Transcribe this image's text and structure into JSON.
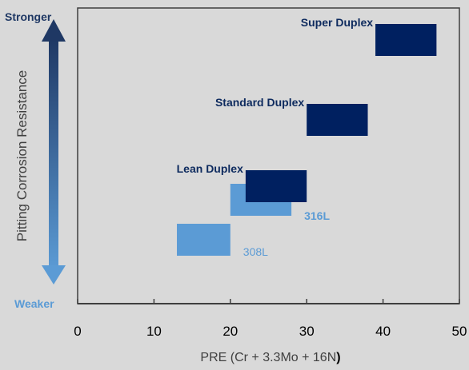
{
  "chart_data": {
    "type": "range-bar",
    "xlabel_main": "PRE (Cr + 3.3Mo + 16N",
    "xlabel_paren": ")",
    "ylabel": "Pitting Corrosion Resistance",
    "y_top_label": "Stronger",
    "y_bottom_label": "Weaker",
    "xlim": [
      0,
      50
    ],
    "xticks": [
      "0",
      "10",
      "20",
      "30",
      "40",
      "50"
    ],
    "grid": false,
    "series": [
      {
        "name": "308L",
        "x_start": 13,
        "x_end": 20,
        "level": 1,
        "color": "#5b9bd5",
        "label_bold": false
      },
      {
        "name": "316L",
        "x_start": 20,
        "x_end": 28,
        "level": 2,
        "color": "#5b9bd5",
        "label_bold": true
      },
      {
        "name": "Lean Duplex",
        "x_start": 22,
        "x_end": 30,
        "level": 3,
        "color": "#002060",
        "label_bold": true
      },
      {
        "name": "Standard Duplex",
        "x_start": 30,
        "x_end": 38,
        "level": 4,
        "color": "#002060",
        "label_bold": true
      },
      {
        "name": "Super Duplex",
        "x_start": 39,
        "x_end": 47,
        "level": 5,
        "color": "#002060",
        "label_bold": true
      }
    ]
  }
}
